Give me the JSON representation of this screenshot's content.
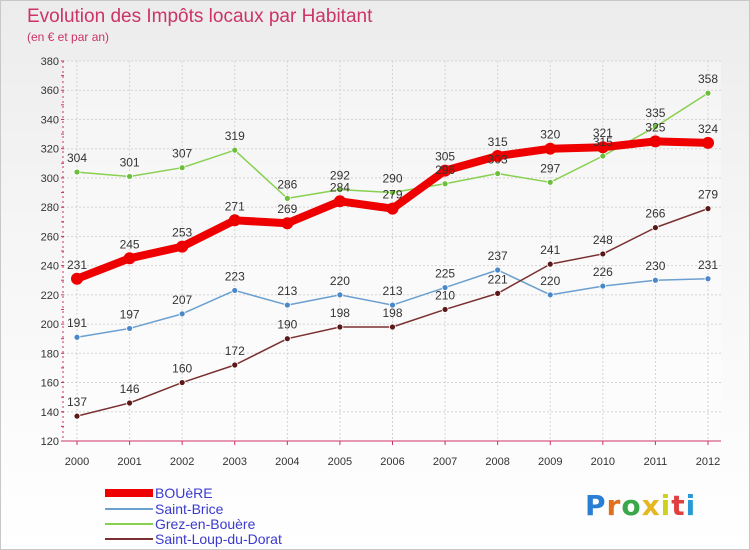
{
  "title": "Evolution des Impôts locaux par Habitant",
  "subtitle": "(en € et par an)",
  "brand": {
    "letters": [
      "P",
      "r",
      "o",
      "x",
      "i",
      "t",
      "i"
    ],
    "colors": [
      "#2a7fd4",
      "#e07020",
      "#3aa84a",
      "#e4b820",
      "#d0d020",
      "#e04040",
      "#2a9ad4"
    ]
  },
  "chart_data": {
    "type": "line",
    "title": "Evolution des Impôts locaux par Habitant",
    "subtitle": "(en € et par an)",
    "xlabel": "",
    "ylabel": "",
    "ylim": [
      120,
      380
    ],
    "yticks": [
      120,
      140,
      160,
      180,
      200,
      220,
      240,
      260,
      280,
      300,
      320,
      340,
      360,
      380
    ],
    "grid": true,
    "legend_position": "bottom-left",
    "x": [
      "2000",
      "2001",
      "2002",
      "2003",
      "2004",
      "2005",
      "2006",
      "2007",
      "2008",
      "2009",
      "2010",
      "2011",
      "2012"
    ],
    "series": [
      {
        "name": "Grez-en-Bouère",
        "color": "#88d050",
        "marker": "#6cbf3a",
        "width": 1.5,
        "values": [
          304,
          301,
          307,
          319,
          286,
          292,
          290,
          296,
          303,
          297,
          315,
          335,
          358
        ]
      },
      {
        "name": "Saint-Brice",
        "color": "#6b9fd0",
        "marker": "#4a88c8",
        "width": 1.5,
        "values": [
          191,
          197,
          207,
          223,
          213,
          220,
          213,
          225,
          237,
          220,
          226,
          230,
          231
        ]
      },
      {
        "name": "Saint-Loup-du-Dorat",
        "color": "#7a3030",
        "marker": "#5a1818",
        "width": 1.5,
        "values": [
          137,
          146,
          160,
          172,
          190,
          198,
          198,
          210,
          221,
          241,
          248,
          266,
          279
        ]
      },
      {
        "name": "BOUèRE",
        "color": "#ee0000",
        "marker": "#ee0000",
        "width": 8,
        "values": [
          231,
          245,
          253,
          271,
          269,
          284,
          279,
          305,
          315,
          320,
          321,
          325,
          324
        ]
      }
    ],
    "legend_order": [
      "BOUèRE",
      "Saint-Brice",
      "Grez-en-Bouère",
      "Saint-Loup-du-Dorat"
    ]
  }
}
